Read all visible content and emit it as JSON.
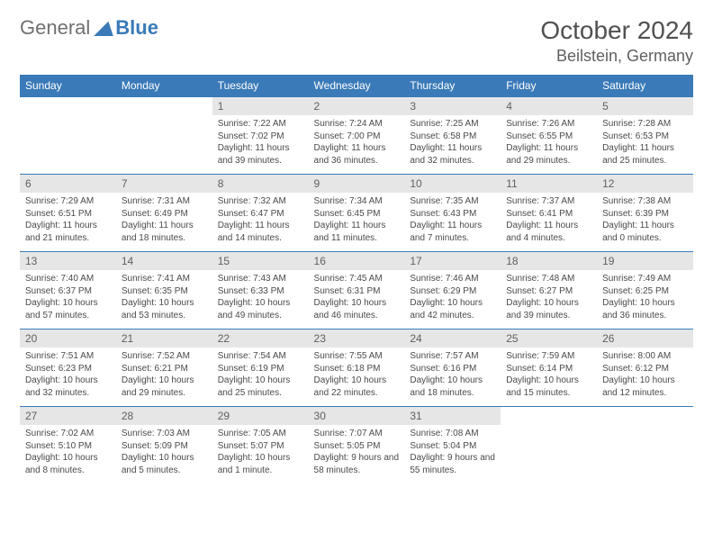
{
  "brand": {
    "part1": "General",
    "part2": "Blue"
  },
  "title": {
    "month": "October 2024",
    "location": "Beilstein, Germany"
  },
  "colors": {
    "accent": "#3a7ab8",
    "header_bg": "#3a7ab8",
    "daynum_bg": "#e6e6e6"
  },
  "weekdays": [
    "Sunday",
    "Monday",
    "Tuesday",
    "Wednesday",
    "Thursday",
    "Friday",
    "Saturday"
  ],
  "weeks": [
    [
      {
        "n": "",
        "sr": "",
        "ss": "",
        "dl": ""
      },
      {
        "n": "",
        "sr": "",
        "ss": "",
        "dl": ""
      },
      {
        "n": "1",
        "sr": "Sunrise: 7:22 AM",
        "ss": "Sunset: 7:02 PM",
        "dl": "Daylight: 11 hours and 39 minutes."
      },
      {
        "n": "2",
        "sr": "Sunrise: 7:24 AM",
        "ss": "Sunset: 7:00 PM",
        "dl": "Daylight: 11 hours and 36 minutes."
      },
      {
        "n": "3",
        "sr": "Sunrise: 7:25 AM",
        "ss": "Sunset: 6:58 PM",
        "dl": "Daylight: 11 hours and 32 minutes."
      },
      {
        "n": "4",
        "sr": "Sunrise: 7:26 AM",
        "ss": "Sunset: 6:55 PM",
        "dl": "Daylight: 11 hours and 29 minutes."
      },
      {
        "n": "5",
        "sr": "Sunrise: 7:28 AM",
        "ss": "Sunset: 6:53 PM",
        "dl": "Daylight: 11 hours and 25 minutes."
      }
    ],
    [
      {
        "n": "6",
        "sr": "Sunrise: 7:29 AM",
        "ss": "Sunset: 6:51 PM",
        "dl": "Daylight: 11 hours and 21 minutes."
      },
      {
        "n": "7",
        "sr": "Sunrise: 7:31 AM",
        "ss": "Sunset: 6:49 PM",
        "dl": "Daylight: 11 hours and 18 minutes."
      },
      {
        "n": "8",
        "sr": "Sunrise: 7:32 AM",
        "ss": "Sunset: 6:47 PM",
        "dl": "Daylight: 11 hours and 14 minutes."
      },
      {
        "n": "9",
        "sr": "Sunrise: 7:34 AM",
        "ss": "Sunset: 6:45 PM",
        "dl": "Daylight: 11 hours and 11 minutes."
      },
      {
        "n": "10",
        "sr": "Sunrise: 7:35 AM",
        "ss": "Sunset: 6:43 PM",
        "dl": "Daylight: 11 hours and 7 minutes."
      },
      {
        "n": "11",
        "sr": "Sunrise: 7:37 AM",
        "ss": "Sunset: 6:41 PM",
        "dl": "Daylight: 11 hours and 4 minutes."
      },
      {
        "n": "12",
        "sr": "Sunrise: 7:38 AM",
        "ss": "Sunset: 6:39 PM",
        "dl": "Daylight: 11 hours and 0 minutes."
      }
    ],
    [
      {
        "n": "13",
        "sr": "Sunrise: 7:40 AM",
        "ss": "Sunset: 6:37 PM",
        "dl": "Daylight: 10 hours and 57 minutes."
      },
      {
        "n": "14",
        "sr": "Sunrise: 7:41 AM",
        "ss": "Sunset: 6:35 PM",
        "dl": "Daylight: 10 hours and 53 minutes."
      },
      {
        "n": "15",
        "sr": "Sunrise: 7:43 AM",
        "ss": "Sunset: 6:33 PM",
        "dl": "Daylight: 10 hours and 49 minutes."
      },
      {
        "n": "16",
        "sr": "Sunrise: 7:45 AM",
        "ss": "Sunset: 6:31 PM",
        "dl": "Daylight: 10 hours and 46 minutes."
      },
      {
        "n": "17",
        "sr": "Sunrise: 7:46 AM",
        "ss": "Sunset: 6:29 PM",
        "dl": "Daylight: 10 hours and 42 minutes."
      },
      {
        "n": "18",
        "sr": "Sunrise: 7:48 AM",
        "ss": "Sunset: 6:27 PM",
        "dl": "Daylight: 10 hours and 39 minutes."
      },
      {
        "n": "19",
        "sr": "Sunrise: 7:49 AM",
        "ss": "Sunset: 6:25 PM",
        "dl": "Daylight: 10 hours and 36 minutes."
      }
    ],
    [
      {
        "n": "20",
        "sr": "Sunrise: 7:51 AM",
        "ss": "Sunset: 6:23 PM",
        "dl": "Daylight: 10 hours and 32 minutes."
      },
      {
        "n": "21",
        "sr": "Sunrise: 7:52 AM",
        "ss": "Sunset: 6:21 PM",
        "dl": "Daylight: 10 hours and 29 minutes."
      },
      {
        "n": "22",
        "sr": "Sunrise: 7:54 AM",
        "ss": "Sunset: 6:19 PM",
        "dl": "Daylight: 10 hours and 25 minutes."
      },
      {
        "n": "23",
        "sr": "Sunrise: 7:55 AM",
        "ss": "Sunset: 6:18 PM",
        "dl": "Daylight: 10 hours and 22 minutes."
      },
      {
        "n": "24",
        "sr": "Sunrise: 7:57 AM",
        "ss": "Sunset: 6:16 PM",
        "dl": "Daylight: 10 hours and 18 minutes."
      },
      {
        "n": "25",
        "sr": "Sunrise: 7:59 AM",
        "ss": "Sunset: 6:14 PM",
        "dl": "Daylight: 10 hours and 15 minutes."
      },
      {
        "n": "26",
        "sr": "Sunrise: 8:00 AM",
        "ss": "Sunset: 6:12 PM",
        "dl": "Daylight: 10 hours and 12 minutes."
      }
    ],
    [
      {
        "n": "27",
        "sr": "Sunrise: 7:02 AM",
        "ss": "Sunset: 5:10 PM",
        "dl": "Daylight: 10 hours and 8 minutes."
      },
      {
        "n": "28",
        "sr": "Sunrise: 7:03 AM",
        "ss": "Sunset: 5:09 PM",
        "dl": "Daylight: 10 hours and 5 minutes."
      },
      {
        "n": "29",
        "sr": "Sunrise: 7:05 AM",
        "ss": "Sunset: 5:07 PM",
        "dl": "Daylight: 10 hours and 1 minute."
      },
      {
        "n": "30",
        "sr": "Sunrise: 7:07 AM",
        "ss": "Sunset: 5:05 PM",
        "dl": "Daylight: 9 hours and 58 minutes."
      },
      {
        "n": "31",
        "sr": "Sunrise: 7:08 AM",
        "ss": "Sunset: 5:04 PM",
        "dl": "Daylight: 9 hours and 55 minutes."
      },
      {
        "n": "",
        "sr": "",
        "ss": "",
        "dl": ""
      },
      {
        "n": "",
        "sr": "",
        "ss": "",
        "dl": ""
      }
    ]
  ]
}
